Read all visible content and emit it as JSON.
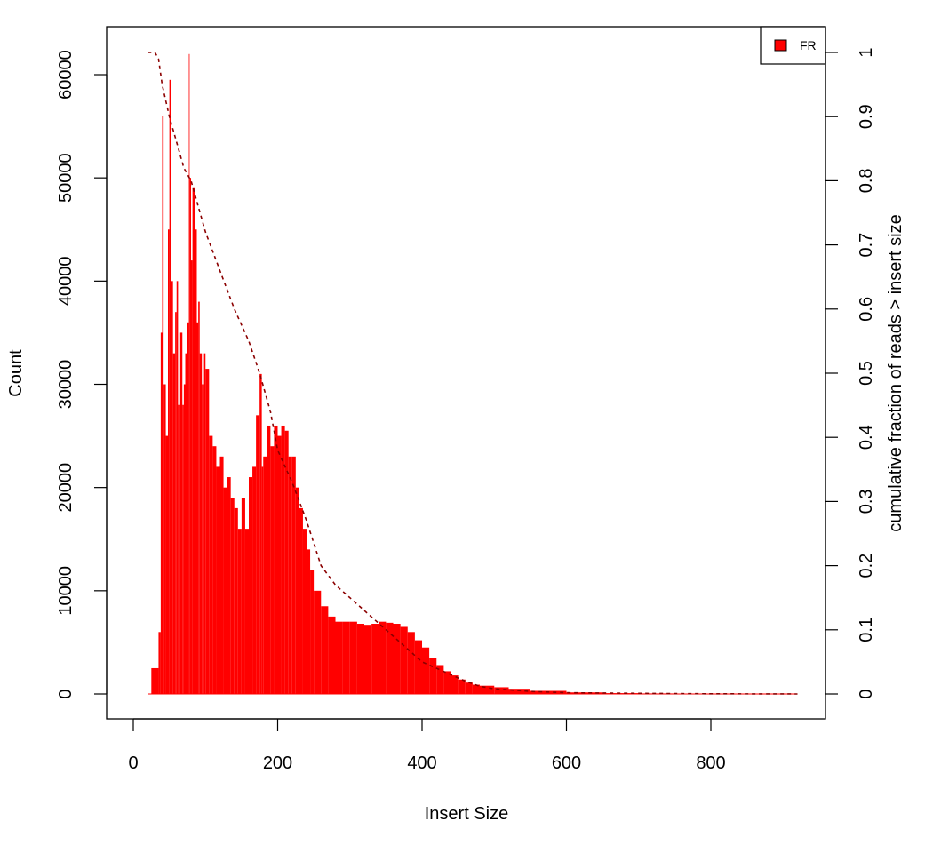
{
  "chart_data": {
    "type": "bar",
    "title": "",
    "xlabel": "Insert Size",
    "ylabel": "Count",
    "y2label": "cumulative fraction of reads > insert size",
    "xlim": [
      0,
      950
    ],
    "ylim": [
      0,
      62500
    ],
    "y2lim": [
      0,
      1
    ],
    "x_ticks": [
      "0",
      "200",
      "400",
      "600",
      "800"
    ],
    "y_ticks": [
      "0",
      "10000",
      "20000",
      "30000",
      "40000",
      "50000",
      "60000"
    ],
    "y2_ticks": [
      "0",
      "0.1",
      "0.2",
      "0.3",
      "0.4",
      "0.5",
      "0.6",
      "0.7",
      "0.8",
      "0.9",
      "1"
    ],
    "legend": {
      "position": "top-right",
      "entries": [
        {
          "label": "FR",
          "color": "#ff0000"
        }
      ]
    },
    "series": [
      {
        "name": "FR",
        "type": "histogram",
        "color": "#ff0000",
        "x": [
          20,
          25,
          30,
          35,
          38,
          40,
          42,
          45,
          48,
          50,
          52,
          55,
          58,
          60,
          62,
          65,
          68,
          70,
          72,
          75,
          77,
          78,
          80,
          82,
          85,
          88,
          90,
          92,
          95,
          98,
          100,
          105,
          110,
          115,
          120,
          125,
          130,
          135,
          140,
          145,
          150,
          155,
          160,
          165,
          170,
          175,
          178,
          180,
          185,
          190,
          195,
          200,
          205,
          210,
          215,
          220,
          225,
          230,
          235,
          240,
          245,
          250,
          260,
          270,
          280,
          290,
          300,
          310,
          320,
          330,
          340,
          350,
          360,
          370,
          380,
          390,
          400,
          410,
          420,
          430,
          440,
          450,
          460,
          470,
          480,
          500,
          520,
          550,
          600,
          650,
          700,
          750,
          800,
          850,
          900,
          920
        ],
        "values": [
          0,
          2500,
          2500,
          6000,
          35000,
          56000,
          30000,
          25000,
          45000,
          59500,
          40000,
          33000,
          37000,
          40000,
          28000,
          35000,
          28000,
          30000,
          33000,
          36000,
          62000,
          50000,
          42000,
          49000,
          45000,
          36000,
          38000,
          33000,
          30000,
          33000,
          31500,
          25000,
          24000,
          22000,
          23000,
          20000,
          21000,
          19000,
          18000,
          16000,
          19000,
          16000,
          21000,
          22000,
          27000,
          31000,
          22000,
          23000,
          26000,
          24000,
          26000,
          25000,
          26000,
          25500,
          23000,
          23000,
          20000,
          18000,
          16000,
          14000,
          12000,
          10000,
          8500,
          7500,
          7000,
          7000,
          7000,
          6800,
          6700,
          6800,
          7000,
          6900,
          6800,
          6500,
          6000,
          5200,
          4500,
          3500,
          2800,
          2200,
          1800,
          1400,
          1100,
          900,
          800,
          650,
          500,
          300,
          150,
          80,
          50,
          30,
          20,
          10,
          5,
          0
        ]
      },
      {
        "name": "cumulative fraction of reads > insert size",
        "type": "line",
        "style": "dashed",
        "color": "#8b0000",
        "axis": "right",
        "x": [
          20,
          30,
          35,
          40,
          50,
          60,
          70,
          80,
          90,
          100,
          120,
          140,
          160,
          175,
          190,
          200,
          220,
          240,
          260,
          280,
          300,
          320,
          340,
          360,
          380,
          400,
          420,
          440,
          460,
          480,
          500,
          550,
          600,
          700,
          800,
          920
        ],
        "values": [
          1.0,
          1.0,
          0.99,
          0.95,
          0.9,
          0.86,
          0.82,
          0.8,
          0.76,
          0.72,
          0.66,
          0.6,
          0.55,
          0.5,
          0.44,
          0.38,
          0.33,
          0.27,
          0.2,
          0.17,
          0.15,
          0.13,
          0.11,
          0.09,
          0.07,
          0.05,
          0.04,
          0.03,
          0.02,
          0.012,
          0.008,
          0.004,
          0.002,
          0.001,
          0.0003,
          0.0
        ]
      }
    ]
  }
}
